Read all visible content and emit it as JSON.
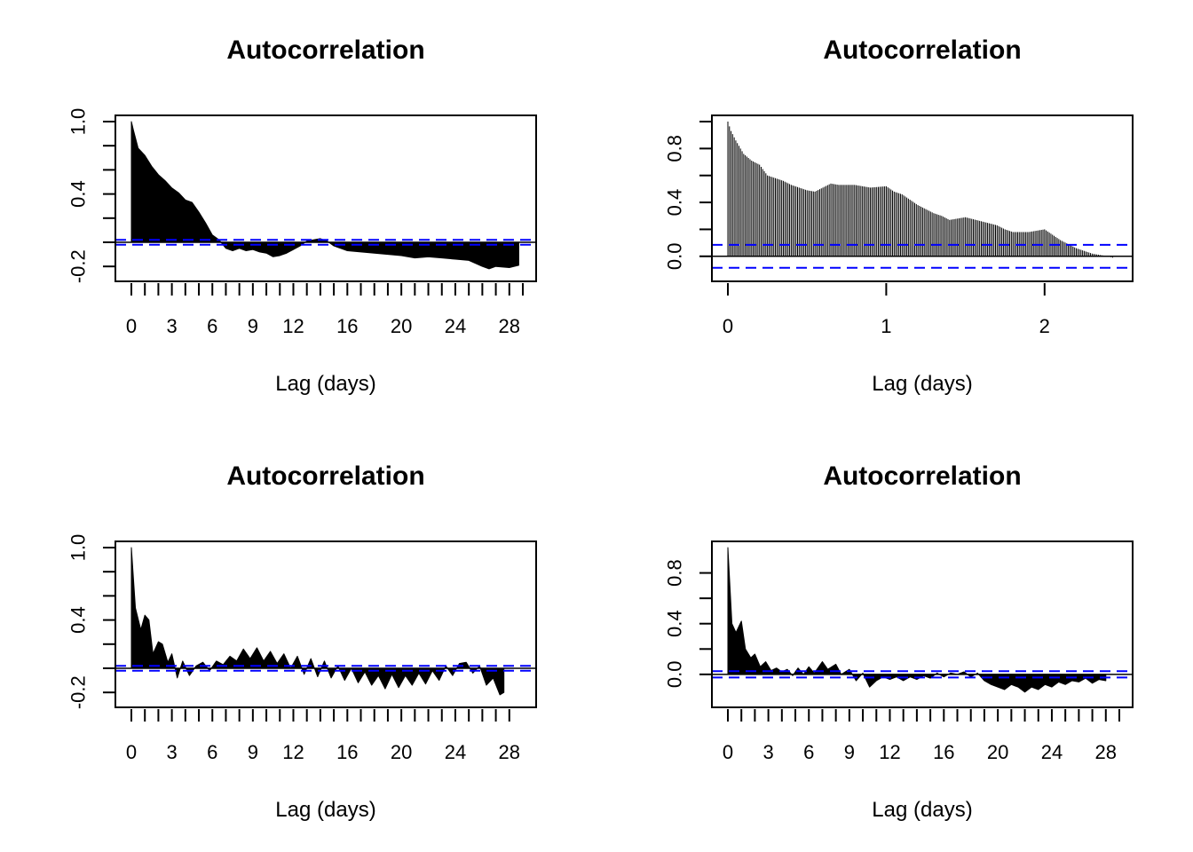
{
  "chart_data": [
    {
      "type": "acf",
      "title": "Autocorrelation",
      "xlabel": "Lag (days)",
      "ylabel": "",
      "xlim": [
        0,
        29
      ],
      "ylim": [
        -0.25,
        1.0
      ],
      "xticks": [
        0,
        1,
        2,
        3,
        4,
        5,
        6,
        7,
        8,
        9,
        10,
        11,
        12,
        13,
        14,
        15,
        16,
        17,
        18,
        19,
        20,
        21,
        22,
        23,
        24,
        25,
        26,
        27,
        28,
        29
      ],
      "xtick_labels": [
        "0",
        "3",
        "6",
        "9",
        "12",
        "16",
        "20",
        "24",
        "28"
      ],
      "xtick_label_values": [
        0,
        3,
        6,
        9,
        12,
        16,
        20,
        24,
        28
      ],
      "yticks": [
        -0.2,
        0,
        0.2,
        0.4,
        0.6,
        0.8,
        1.0
      ],
      "ytick_labels": [
        "-0.2",
        "0.4",
        "1.0"
      ],
      "ytick_label_values": [
        -0.2,
        0.4,
        1.0
      ],
      "ci": 0.02,
      "acf_points": [
        [
          0,
          1.0
        ],
        [
          0.15,
          0.93
        ],
        [
          0.5,
          0.78
        ],
        [
          1,
          0.72
        ],
        [
          1.5,
          0.63
        ],
        [
          2,
          0.56
        ],
        [
          2.5,
          0.51
        ],
        [
          3,
          0.45
        ],
        [
          3.5,
          0.41
        ],
        [
          4,
          0.35
        ],
        [
          4.5,
          0.33
        ],
        [
          5,
          0.25
        ],
        [
          5.5,
          0.16
        ],
        [
          6,
          0.06
        ],
        [
          6.5,
          0.02
        ],
        [
          7,
          -0.05
        ],
        [
          7.5,
          -0.07
        ],
        [
          8,
          -0.05
        ],
        [
          8.5,
          -0.07
        ],
        [
          9,
          -0.06
        ],
        [
          9.5,
          -0.08
        ],
        [
          10,
          -0.09
        ],
        [
          10.5,
          -0.12
        ],
        [
          11,
          -0.11
        ],
        [
          11.5,
          -0.09
        ],
        [
          12,
          -0.06
        ],
        [
          12.5,
          -0.03
        ],
        [
          13,
          0.01
        ],
        [
          14,
          0.03
        ],
        [
          14.5,
          0.01
        ],
        [
          15,
          -0.03
        ],
        [
          15.5,
          -0.05
        ],
        [
          16,
          -0.07
        ],
        [
          17,
          -0.08
        ],
        [
          18,
          -0.09
        ],
        [
          19,
          -0.1
        ],
        [
          20,
          -0.11
        ],
        [
          21,
          -0.13
        ],
        [
          22,
          -0.12
        ],
        [
          23,
          -0.13
        ],
        [
          24,
          -0.14
        ],
        [
          25,
          -0.15
        ],
        [
          26,
          -0.2
        ],
        [
          26.5,
          -0.22
        ],
        [
          27,
          -0.2
        ],
        [
          28,
          -0.21
        ],
        [
          28.7,
          -0.19
        ]
      ]
    },
    {
      "type": "acf",
      "title": "Autocorrelation",
      "xlabel": "Lag (days)",
      "ylabel": "",
      "xlim": [
        0,
        2.5
      ],
      "ylim": [
        -0.12,
        1.0
      ],
      "xticks": [
        0,
        1,
        2
      ],
      "xtick_labels": [
        "0",
        "1",
        "2"
      ],
      "xtick_label_values": [
        0,
        1,
        2
      ],
      "yticks": [
        0,
        0.2,
        0.4,
        0.6,
        0.8,
        1.0
      ],
      "ytick_labels": [
        "0.0",
        "0.4",
        "0.8"
      ],
      "ytick_label_values": [
        0,
        0.4,
        0.8
      ],
      "ci": 0.085,
      "acf_points": [
        [
          0,
          1.0
        ],
        [
          0.02,
          0.93
        ],
        [
          0.05,
          0.86
        ],
        [
          0.1,
          0.76
        ],
        [
          0.15,
          0.71
        ],
        [
          0.2,
          0.68
        ],
        [
          0.25,
          0.6
        ],
        [
          0.3,
          0.58
        ],
        [
          0.35,
          0.56
        ],
        [
          0.4,
          0.53
        ],
        [
          0.5,
          0.49
        ],
        [
          0.55,
          0.48
        ],
        [
          0.6,
          0.51
        ],
        [
          0.65,
          0.54
        ],
        [
          0.7,
          0.53
        ],
        [
          0.8,
          0.53
        ],
        [
          0.9,
          0.51
        ],
        [
          1.0,
          0.52
        ],
        [
          1.05,
          0.48
        ],
        [
          1.1,
          0.46
        ],
        [
          1.2,
          0.38
        ],
        [
          1.3,
          0.32
        ],
        [
          1.35,
          0.3
        ],
        [
          1.4,
          0.27
        ],
        [
          1.5,
          0.29
        ],
        [
          1.6,
          0.26
        ],
        [
          1.7,
          0.23
        ],
        [
          1.75,
          0.2
        ],
        [
          1.8,
          0.18
        ],
        [
          1.9,
          0.18
        ],
        [
          1.95,
          0.19
        ],
        [
          2.0,
          0.2
        ],
        [
          2.05,
          0.16
        ],
        [
          2.1,
          0.12
        ],
        [
          2.2,
          0.06
        ],
        [
          2.3,
          0.02
        ],
        [
          2.4,
          0.0
        ],
        [
          2.43,
          -0.01
        ]
      ]
    },
    {
      "type": "acf",
      "title": "Autocorrelation",
      "xlabel": "Lag (days)",
      "ylabel": "",
      "xlim": [
        0,
        29
      ],
      "ylim": [
        -0.25,
        1.0
      ],
      "xticks": [
        0,
        1,
        2,
        3,
        4,
        5,
        6,
        7,
        8,
        9,
        10,
        11,
        12,
        13,
        14,
        15,
        16,
        17,
        18,
        19,
        20,
        21,
        22,
        23,
        24,
        25,
        26,
        27,
        28
      ],
      "xtick_labels": [
        "0",
        "3",
        "6",
        "9",
        "12",
        "16",
        "20",
        "24",
        "28"
      ],
      "xtick_label_values": [
        0,
        3,
        6,
        9,
        12,
        16,
        20,
        24,
        28
      ],
      "yticks": [
        -0.2,
        0,
        0.2,
        0.4,
        0.6,
        0.8,
        1.0
      ],
      "ytick_labels": [
        "-0.2",
        "0.4",
        "1.0"
      ],
      "ytick_label_values": [
        -0.2,
        0.4,
        1.0
      ],
      "ci": 0.02,
      "acf_points": [
        [
          0,
          1.0
        ],
        [
          0.3,
          0.5
        ],
        [
          0.7,
          0.32
        ],
        [
          1,
          0.44
        ],
        [
          1.3,
          0.4
        ],
        [
          1.6,
          0.12
        ],
        [
          2,
          0.22
        ],
        [
          2.3,
          0.2
        ],
        [
          2.7,
          0.05
        ],
        [
          3,
          0.12
        ],
        [
          3.4,
          -0.08
        ],
        [
          3.8,
          0.06
        ],
        [
          4.3,
          -0.06
        ],
        [
          4.8,
          0.02
        ],
        [
          5.3,
          0.05
        ],
        [
          5.8,
          -0.02
        ],
        [
          6.3,
          0.06
        ],
        [
          6.8,
          0.03
        ],
        [
          7.3,
          0.1
        ],
        [
          7.8,
          0.06
        ],
        [
          8.3,
          0.16
        ],
        [
          8.8,
          0.08
        ],
        [
          9.3,
          0.17
        ],
        [
          9.8,
          0.06
        ],
        [
          10.3,
          0.14
        ],
        [
          10.8,
          0.04
        ],
        [
          11.3,
          0.12
        ],
        [
          11.8,
          0.0
        ],
        [
          12.3,
          0.1
        ],
        [
          12.8,
          -0.05
        ],
        [
          13.3,
          0.08
        ],
        [
          13.8,
          -0.07
        ],
        [
          14.3,
          0.06
        ],
        [
          14.8,
          -0.08
        ],
        [
          15.3,
          0.02
        ],
        [
          15.8,
          -0.1
        ],
        [
          16.3,
          0.0
        ],
        [
          16.8,
          -0.12
        ],
        [
          17.3,
          -0.03
        ],
        [
          17.8,
          -0.14
        ],
        [
          18.3,
          -0.06
        ],
        [
          18.8,
          -0.17
        ],
        [
          19.3,
          -0.05
        ],
        [
          19.8,
          -0.16
        ],
        [
          20.3,
          -0.06
        ],
        [
          20.8,
          -0.14
        ],
        [
          21.3,
          -0.04
        ],
        [
          21.8,
          -0.13
        ],
        [
          22.3,
          -0.02
        ],
        [
          22.8,
          -0.1
        ],
        [
          23.3,
          0.02
        ],
        [
          23.8,
          -0.06
        ],
        [
          24.3,
          0.04
        ],
        [
          24.8,
          0.05
        ],
        [
          25.3,
          -0.04
        ],
        [
          25.8,
          0.02
        ],
        [
          26.3,
          -0.14
        ],
        [
          26.8,
          -0.08
        ],
        [
          27.3,
          -0.22
        ],
        [
          27.6,
          -0.2
        ]
      ]
    },
    {
      "type": "acf",
      "title": "Autocorrelation",
      "xlabel": "Lag (days)",
      "ylabel": "",
      "xlim": [
        0,
        29
      ],
      "ylim": [
        -0.19,
        1.0
      ],
      "xticks": [
        0,
        1,
        2,
        3,
        4,
        5,
        6,
        7,
        8,
        9,
        10,
        11,
        12,
        13,
        14,
        15,
        16,
        17,
        18,
        19,
        20,
        21,
        22,
        23,
        24,
        25,
        26,
        27,
        28,
        29
      ],
      "xtick_labels": [
        "0",
        "3",
        "6",
        "9",
        "12",
        "16",
        "20",
        "24",
        "28"
      ],
      "xtick_label_values": [
        0,
        3,
        6,
        9,
        12,
        16,
        20,
        24,
        28
      ],
      "yticks": [
        0,
        0.2,
        0.4,
        0.6,
        0.8
      ],
      "ytick_labels": [
        "0.0",
        "0.4",
        "0.8"
      ],
      "ytick_label_values": [
        0,
        0.4,
        0.8
      ],
      "ci": 0.025,
      "acf_points": [
        [
          0,
          1.0
        ],
        [
          0.3,
          0.4
        ],
        [
          0.6,
          0.33
        ],
        [
          1,
          0.42
        ],
        [
          1.3,
          0.2
        ],
        [
          1.7,
          0.13
        ],
        [
          2,
          0.16
        ],
        [
          2.4,
          0.06
        ],
        [
          2.8,
          0.1
        ],
        [
          3.2,
          0.03
        ],
        [
          3.6,
          0.05
        ],
        [
          4,
          0.02
        ],
        [
          4.4,
          0.04
        ],
        [
          4.8,
          -0.01
        ],
        [
          5.2,
          0.05
        ],
        [
          5.6,
          0.0
        ],
        [
          6,
          0.06
        ],
        [
          6.4,
          0.01
        ],
        [
          7,
          0.1
        ],
        [
          7.4,
          0.04
        ],
        [
          8,
          0.08
        ],
        [
          8.4,
          0.0
        ],
        [
          9,
          0.04
        ],
        [
          9.5,
          -0.05
        ],
        [
          10,
          0.01
        ],
        [
          10.5,
          -0.1
        ],
        [
          11,
          -0.05
        ],
        [
          11.5,
          -0.02
        ],
        [
          12,
          -0.04
        ],
        [
          12.5,
          -0.02
        ],
        [
          13,
          -0.05
        ],
        [
          13.5,
          -0.02
        ],
        [
          14,
          -0.04
        ],
        [
          14.5,
          -0.01
        ],
        [
          15,
          -0.03
        ],
        [
          15.5,
          0.01
        ],
        [
          16,
          -0.02
        ],
        [
          16.5,
          0.01
        ],
        [
          17,
          0.0
        ],
        [
          17.5,
          0.02
        ],
        [
          18,
          -0.02
        ],
        [
          18.5,
          0.01
        ],
        [
          19,
          -0.05
        ],
        [
          19.5,
          -0.08
        ],
        [
          20,
          -0.1
        ],
        [
          20.5,
          -0.12
        ],
        [
          21,
          -0.08
        ],
        [
          21.5,
          -0.1
        ],
        [
          22,
          -0.14
        ],
        [
          22.5,
          -0.1
        ],
        [
          23,
          -0.12
        ],
        [
          23.5,
          -0.08
        ],
        [
          24,
          -0.1
        ],
        [
          24.5,
          -0.06
        ],
        [
          25,
          -0.08
        ],
        [
          25.5,
          -0.05
        ],
        [
          26,
          -0.06
        ],
        [
          26.5,
          -0.03
        ],
        [
          27,
          -0.07
        ],
        [
          27.5,
          -0.04
        ],
        [
          28,
          -0.05
        ]
      ]
    }
  ]
}
